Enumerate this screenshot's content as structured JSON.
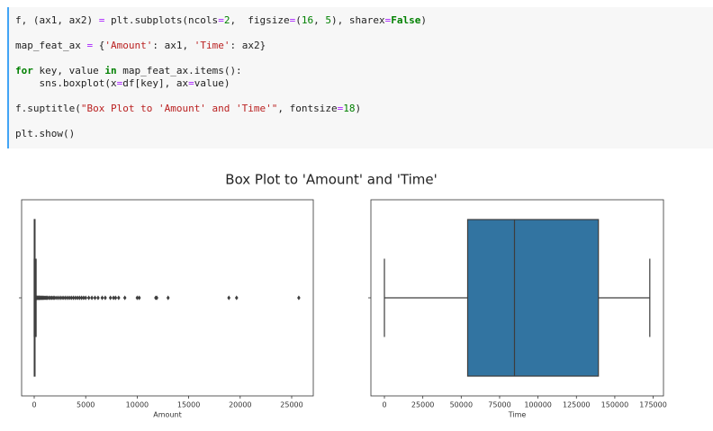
{
  "code": {
    "lines": [
      [
        {
          "text": "f, (ax1, ax2) ",
          "kind": "plain"
        },
        {
          "text": "=",
          "kind": "op"
        },
        {
          "text": " plt.subplots(ncols",
          "kind": "plain"
        },
        {
          "text": "=",
          "kind": "op"
        },
        {
          "text": "2",
          "kind": "num"
        },
        {
          "text": ",  figsize",
          "kind": "plain"
        },
        {
          "text": "=",
          "kind": "op"
        },
        {
          "text": "(",
          "kind": "plain"
        },
        {
          "text": "16",
          "kind": "num"
        },
        {
          "text": ", ",
          "kind": "plain"
        },
        {
          "text": "5",
          "kind": "num"
        },
        {
          "text": "), sharex",
          "kind": "plain"
        },
        {
          "text": "=",
          "kind": "op"
        },
        {
          "text": "False",
          "kind": "kw"
        },
        {
          "text": ")",
          "kind": "plain"
        }
      ],
      [
        {
          "text": "map_feat_ax ",
          "kind": "plain"
        },
        {
          "text": "=",
          "kind": "op"
        },
        {
          "text": " {",
          "kind": "plain"
        },
        {
          "text": "'Amount'",
          "kind": "str"
        },
        {
          "text": ": ax1, ",
          "kind": "plain"
        },
        {
          "text": "'Time'",
          "kind": "str"
        },
        {
          "text": ": ax2}",
          "kind": "plain"
        }
      ],
      [
        {
          "text": "for",
          "kind": "kw"
        },
        {
          "text": " key, value ",
          "kind": "plain"
        },
        {
          "text": "in",
          "kind": "kw"
        },
        {
          "text": " map_feat_ax.items():",
          "kind": "plain"
        }
      ],
      [
        {
          "text": "    sns.boxplot(x",
          "kind": "plain"
        },
        {
          "text": "=",
          "kind": "op"
        },
        {
          "text": "df[key], ax",
          "kind": "plain"
        },
        {
          "text": "=",
          "kind": "op"
        },
        {
          "text": "value)",
          "kind": "plain"
        }
      ],
      [
        {
          "text": "f.suptitle(",
          "kind": "plain"
        },
        {
          "text": "\"Box Plot to 'Amount' and 'Time'\"",
          "kind": "str"
        },
        {
          "text": ", fontsize",
          "kind": "plain"
        },
        {
          "text": "=",
          "kind": "op"
        },
        {
          "text": "18",
          "kind": "num"
        },
        {
          "text": ")",
          "kind": "plain"
        }
      ],
      [
        {
          "text": "plt.show()",
          "kind": "plain"
        }
      ]
    ]
  },
  "figure": {
    "suptitle": "Box Plot to 'Amount' and 'Time'"
  },
  "chart_data": [
    {
      "type": "box",
      "xlabel": "Amount",
      "color": "#3274a1",
      "stats": {
        "whislo": 0,
        "q1": 5.6,
        "med": 22,
        "q3": 77.17,
        "whishi": 184.5
      },
      "fliers": [
        200,
        230,
        260,
        300,
        350,
        400,
        450,
        500,
        560,
        620,
        700,
        780,
        860,
        950,
        1050,
        1150,
        1250,
        1400,
        1550,
        1700,
        1850,
        2000,
        2200,
        2400,
        2600,
        2800,
        3000,
        3200,
        3400,
        3600,
        3800,
        4000,
        4200,
        4400,
        4600,
        4800,
        5000,
        5300,
        5600,
        5900,
        6200,
        6600,
        6900,
        7400,
        7700,
        7900,
        8200,
        8800,
        10000,
        10200,
        11800,
        11900,
        13000,
        18900,
        19650,
        25691
      ],
      "xlim": [
        -1224,
        27098
      ],
      "xticks": [
        0,
        5000,
        10000,
        15000,
        20000,
        25000
      ]
    },
    {
      "type": "box",
      "xlabel": "Time",
      "color": "#3274a1",
      "stats": {
        "whislo": 0,
        "q1": 54201,
        "med": 84692,
        "q3": 139320,
        "whishi": 172792
      },
      "fliers": [],
      "xlim": [
        -8800,
        181700
      ],
      "xticks": [
        0,
        25000,
        50000,
        75000,
        100000,
        125000,
        150000,
        175000
      ]
    }
  ]
}
